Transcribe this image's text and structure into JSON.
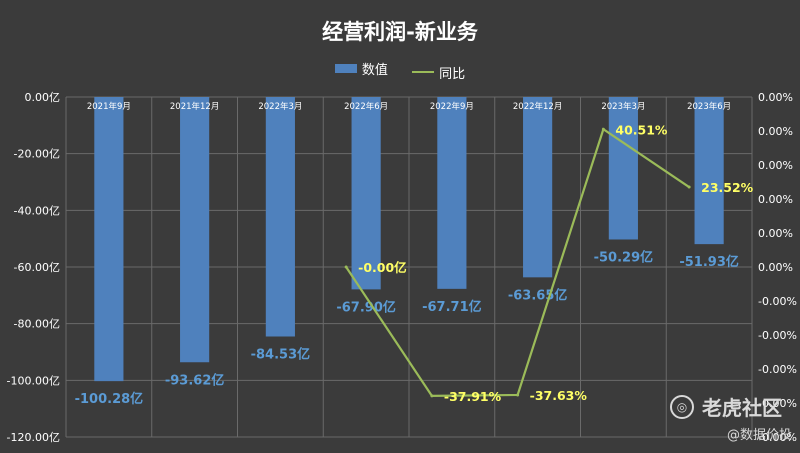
{
  "chart_data": {
    "type": "bar",
    "title": "经营利润-新业务",
    "categories": [
      "2021年9月",
      "2021年12月",
      "2022年3月",
      "2022年6月",
      "2022年9月",
      "2022年12月",
      "2023年3月",
      "2023年6月"
    ],
    "series": [
      {
        "name": "数值",
        "type": "bar",
        "axis": "left",
        "values": [
          -100.28,
          -93.62,
          -84.53,
          -67.9,
          -67.71,
          -63.65,
          -50.29,
          -51.93
        ],
        "labels": [
          "-100.28亿",
          "-93.62亿",
          "-84.53亿",
          "-67.90亿",
          "-67.71亿",
          "-63.65亿",
          "-50.29亿",
          "-51.93亿"
        ],
        "color": "#4f81bd"
      },
      {
        "name": "同比",
        "type": "line",
        "axis": "right",
        "values": [
          null,
          null,
          null,
          0.0,
          -37.91,
          -37.63,
          40.51,
          23.52
        ],
        "labels": [
          "",
          "",
          "",
          "-0.00亿",
          "-37.91%",
          "-37.63%",
          "40.51%",
          "23.52%"
        ],
        "color": "#9bbb59"
      }
    ],
    "ylim_left": [
      -120,
      0
    ],
    "y_ticks_left": [
      "0.00亿",
      "-20.00亿",
      "-40.00亿",
      "-60.00亿",
      "-80.00亿",
      "-100.00亿",
      "-120.00亿"
    ],
    "y_ticks_right": [
      "0.00%",
      "0.00%",
      "0.00%",
      "0.00%",
      "0.00%",
      "0.00%",
      "-0.00%",
      "-0.00%",
      "-0.00%",
      "-0.00%",
      "-0.00%"
    ],
    "right_line_range": [
      -50,
      50
    ],
    "grid": true,
    "legend_position": "top-center"
  },
  "watermark": {
    "brand": "老虎社区",
    "sub": "@数据价投"
  }
}
